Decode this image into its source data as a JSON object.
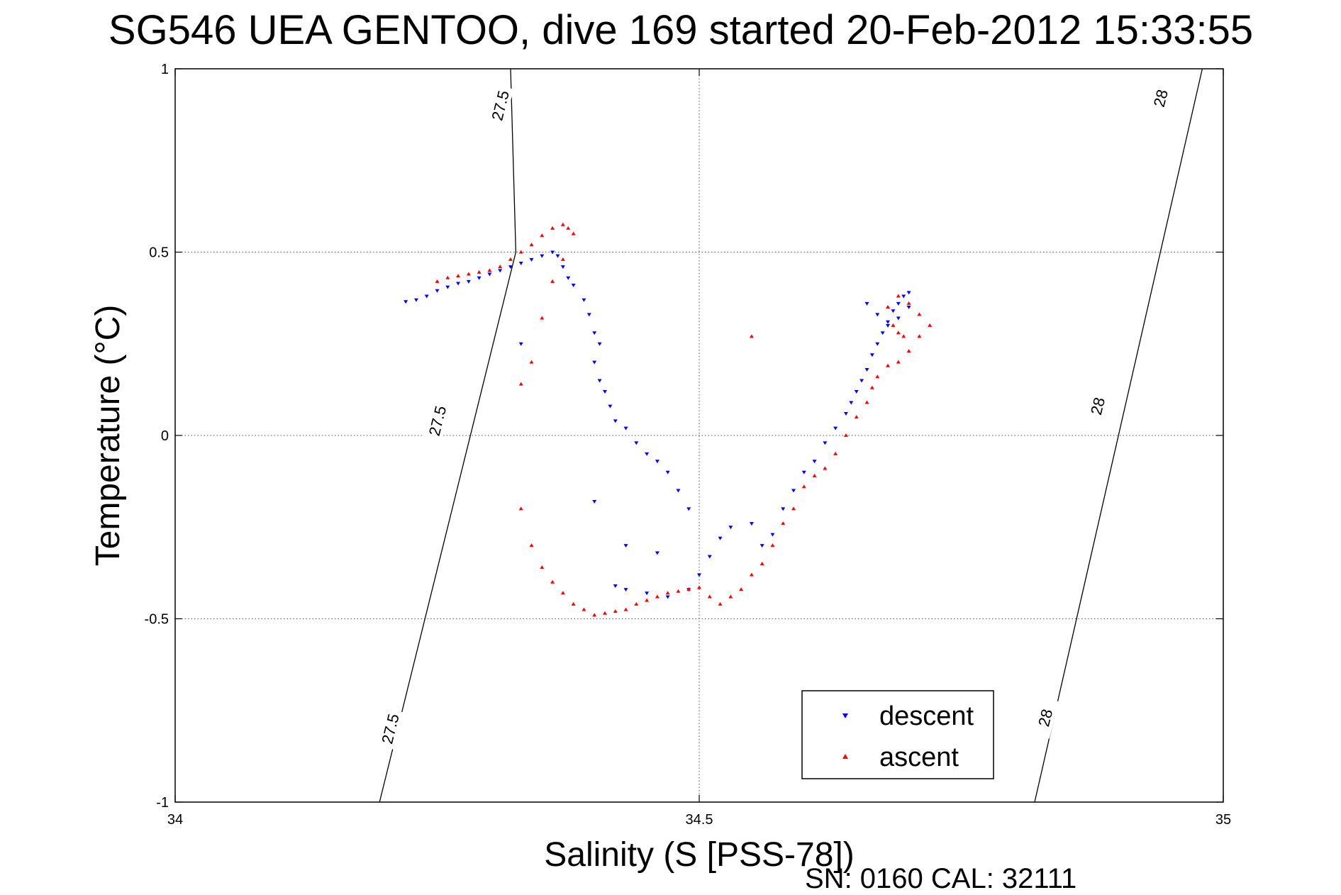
{
  "chart_data": {
    "type": "scatter",
    "title": "SG546 UEA GENTOO, dive 169 started 20-Feb-2012 15:33:55",
    "xlabel": "Salinity (S [PSS-78])",
    "ylabel": "Temperature (°C)",
    "xlim": [
      34,
      35
    ],
    "ylim": [
      -1,
      1
    ],
    "x_ticks": [
      "34",
      "34.5",
      "35"
    ],
    "y_ticks": [
      "1",
      "0.5",
      "0",
      "-0.5",
      "-1"
    ],
    "grid": true,
    "legend_position": "bottom-right",
    "footer": "SN: 0160  CAL: 32111",
    "isopycnals": [
      {
        "label": "27.5",
        "points": [
          [
            34.195,
            -1.0
          ],
          [
            34.325,
            0.5
          ],
          [
            34.32,
            1.0
          ]
        ],
        "label_positions": [
          [
            34.205,
            -0.8
          ],
          [
            34.25,
            0.04
          ],
          [
            34.31,
            0.9
          ]
        ]
      },
      {
        "label": "28",
        "points": [
          [
            34.82,
            -1.0
          ],
          [
            34.98,
            1.0
          ]
        ],
        "label_positions": [
          [
            34.83,
            -0.77
          ],
          [
            34.88,
            0.08
          ],
          [
            34.94,
            0.92
          ]
        ]
      }
    ],
    "series": [
      {
        "name": "descent",
        "color": "#0000ff",
        "marker": "triangle-down",
        "points": [
          [
            34.22,
            0.365
          ],
          [
            34.23,
            0.37
          ],
          [
            34.24,
            0.38
          ],
          [
            34.25,
            0.395
          ],
          [
            34.26,
            0.405
          ],
          [
            34.27,
            0.415
          ],
          [
            34.28,
            0.42
          ],
          [
            34.29,
            0.43
          ],
          [
            34.3,
            0.44
          ],
          [
            34.31,
            0.45
          ],
          [
            34.32,
            0.46
          ],
          [
            34.33,
            0.47
          ],
          [
            34.34,
            0.48
          ],
          [
            34.35,
            0.49
          ],
          [
            34.36,
            0.5
          ],
          [
            34.365,
            0.49
          ],
          [
            34.37,
            0.46
          ],
          [
            34.375,
            0.43
          ],
          [
            34.38,
            0.41
          ],
          [
            34.39,
            0.37
          ],
          [
            34.395,
            0.33
          ],
          [
            34.4,
            0.28
          ],
          [
            34.405,
            0.25
          ],
          [
            34.33,
            0.25
          ],
          [
            34.4,
            0.2
          ],
          [
            34.405,
            0.15
          ],
          [
            34.41,
            0.12
          ],
          [
            34.415,
            0.08
          ],
          [
            34.42,
            0.04
          ],
          [
            34.43,
            0.02
          ],
          [
            34.44,
            -0.02
          ],
          [
            34.45,
            -0.05
          ],
          [
            34.46,
            -0.07
          ],
          [
            34.47,
            -0.1
          ],
          [
            34.48,
            -0.15
          ],
          [
            34.49,
            -0.2
          ],
          [
            34.4,
            -0.18
          ],
          [
            34.43,
            -0.3
          ],
          [
            34.46,
            -0.32
          ],
          [
            34.42,
            -0.41
          ],
          [
            34.43,
            -0.42
          ],
          [
            34.45,
            -0.43
          ],
          [
            34.47,
            -0.44
          ],
          [
            34.49,
            -0.42
          ],
          [
            34.5,
            -0.38
          ],
          [
            34.51,
            -0.33
          ],
          [
            34.52,
            -0.28
          ],
          [
            34.53,
            -0.25
          ],
          [
            34.55,
            -0.24
          ],
          [
            34.56,
            -0.3
          ],
          [
            34.57,
            -0.27
          ],
          [
            34.58,
            -0.2
          ],
          [
            34.59,
            -0.15
          ],
          [
            34.6,
            -0.1
          ],
          [
            34.61,
            -0.07
          ],
          [
            34.62,
            -0.02
          ],
          [
            34.63,
            0.02
          ],
          [
            34.64,
            0.06
          ],
          [
            34.645,
            0.09
          ],
          [
            34.65,
            0.12
          ],
          [
            34.655,
            0.15
          ],
          [
            34.66,
            0.18
          ],
          [
            34.665,
            0.22
          ],
          [
            34.67,
            0.25
          ],
          [
            34.675,
            0.28
          ],
          [
            34.68,
            0.31
          ],
          [
            34.685,
            0.34
          ],
          [
            34.69,
            0.36
          ],
          [
            34.695,
            0.38
          ],
          [
            34.7,
            0.39
          ],
          [
            34.7,
            0.35
          ],
          [
            34.69,
            0.32
          ],
          [
            34.68,
            0.3
          ],
          [
            34.67,
            0.33
          ],
          [
            34.66,
            0.36
          ]
        ]
      },
      {
        "name": "ascent",
        "color": "#ff0000",
        "marker": "triangle-up",
        "points": [
          [
            34.25,
            0.42
          ],
          [
            34.26,
            0.43
          ],
          [
            34.27,
            0.435
          ],
          [
            34.28,
            0.44
          ],
          [
            34.29,
            0.445
          ],
          [
            34.3,
            0.45
          ],
          [
            34.31,
            0.46
          ],
          [
            34.32,
            0.48
          ],
          [
            34.33,
            0.5
          ],
          [
            34.34,
            0.52
          ],
          [
            34.35,
            0.545
          ],
          [
            34.36,
            0.565
          ],
          [
            34.37,
            0.575
          ],
          [
            34.375,
            0.565
          ],
          [
            34.38,
            0.55
          ],
          [
            34.37,
            0.48
          ],
          [
            34.36,
            0.42
          ],
          [
            34.35,
            0.32
          ],
          [
            34.34,
            0.2
          ],
          [
            34.33,
            0.14
          ],
          [
            34.55,
            0.27
          ],
          [
            34.33,
            -0.2
          ],
          [
            34.34,
            -0.3
          ],
          [
            34.35,
            -0.36
          ],
          [
            34.36,
            -0.4
          ],
          [
            34.37,
            -0.43
          ],
          [
            34.38,
            -0.46
          ],
          [
            34.39,
            -0.475
          ],
          [
            34.4,
            -0.49
          ],
          [
            34.41,
            -0.485
          ],
          [
            34.42,
            -0.48
          ],
          [
            34.43,
            -0.475
          ],
          [
            34.44,
            -0.46
          ],
          [
            34.45,
            -0.45
          ],
          [
            34.46,
            -0.44
          ],
          [
            34.47,
            -0.43
          ],
          [
            34.48,
            -0.425
          ],
          [
            34.49,
            -0.42
          ],
          [
            34.5,
            -0.415
          ],
          [
            34.51,
            -0.44
          ],
          [
            34.52,
            -0.46
          ],
          [
            34.53,
            -0.44
          ],
          [
            34.54,
            -0.42
          ],
          [
            34.55,
            -0.38
          ],
          [
            34.56,
            -0.35
          ],
          [
            34.57,
            -0.3
          ],
          [
            34.58,
            -0.24
          ],
          [
            34.59,
            -0.2
          ],
          [
            34.6,
            -0.14
          ],
          [
            34.61,
            -0.11
          ],
          [
            34.62,
            -0.09
          ],
          [
            34.63,
            -0.05
          ],
          [
            34.64,
            0.0
          ],
          [
            34.65,
            0.05
          ],
          [
            34.66,
            0.09
          ],
          [
            34.665,
            0.13
          ],
          [
            34.67,
            0.16
          ],
          [
            34.68,
            0.19
          ],
          [
            34.69,
            0.2
          ],
          [
            34.7,
            0.23
          ],
          [
            34.71,
            0.27
          ],
          [
            34.72,
            0.3
          ],
          [
            34.71,
            0.33
          ],
          [
            34.7,
            0.36
          ],
          [
            34.69,
            0.38
          ],
          [
            34.68,
            0.35
          ],
          [
            34.685,
            0.3
          ],
          [
            34.69,
            0.28
          ],
          [
            34.695,
            0.27
          ]
        ]
      }
    ]
  }
}
